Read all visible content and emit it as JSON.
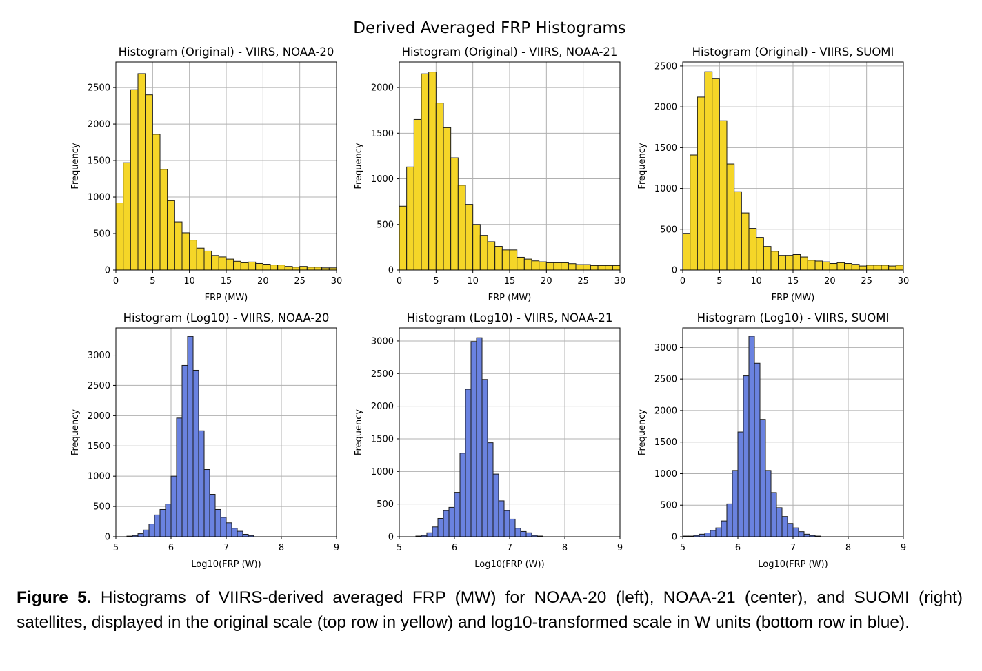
{
  "figure": {
    "suptitle": "Derived Averaged FRP Histograms",
    "caption_label": "Figure 5.",
    "caption_text": " Histograms of VIIRS-derived averaged FRP (MW) for NOAA-20 (left), NOAA-21 (center), and SUOMI (right) satellites, displayed in the original scale (top row in yellow) and log10-transformed scale in W units (bottom row in blue).",
    "colors": {
      "original_fill": "#f5d628",
      "log_fill": "#6a82e0",
      "edge": "#1a1a1a",
      "grid": "#b0b0b0"
    }
  },
  "chart_data": [
    {
      "type": "bar",
      "title": "Histogram (Original) - VIIRS, NOAA-20",
      "xlabel": "FRP (MW)",
      "ylabel": "Frequency",
      "xlim": [
        0,
        30
      ],
      "ylim": [
        0,
        2850
      ],
      "xticks": [
        0,
        5,
        10,
        15,
        20,
        25,
        30
      ],
      "yticks": [
        0,
        500,
        1000,
        1500,
        2000,
        2500
      ],
      "bin_start": 0,
      "bin_width": 1,
      "values": [
        920,
        1470,
        2470,
        2690,
        2400,
        1860,
        1380,
        950,
        660,
        510,
        410,
        300,
        260,
        200,
        180,
        150,
        120,
        100,
        110,
        90,
        80,
        70,
        70,
        50,
        40,
        50,
        40,
        40,
        30,
        30
      ],
      "color": "yellow",
      "grid": true
    },
    {
      "type": "bar",
      "title": "Histogram (Original) - VIIRS, NOAA-21",
      "xlabel": "FRP (MW)",
      "ylabel": "Frequency",
      "xlim": [
        0,
        30
      ],
      "ylim": [
        0,
        2280
      ],
      "xticks": [
        0,
        5,
        10,
        15,
        20,
        25,
        30
      ],
      "yticks": [
        0,
        500,
        1000,
        1500,
        2000
      ],
      "bin_start": 0,
      "bin_width": 1,
      "values": [
        700,
        1130,
        1650,
        2150,
        2170,
        1830,
        1560,
        1230,
        930,
        720,
        500,
        380,
        310,
        260,
        220,
        220,
        140,
        120,
        100,
        90,
        80,
        80,
        80,
        70,
        60,
        60,
        50,
        50,
        50,
        50
      ],
      "color": "yellow",
      "grid": true
    },
    {
      "type": "bar",
      "title": "Histogram (Original) - VIIRS, SUOMI",
      "xlabel": "FRP (MW)",
      "ylabel": "Frequency",
      "xlim": [
        0,
        30
      ],
      "ylim": [
        0,
        2550
      ],
      "xticks": [
        0,
        5,
        10,
        15,
        20,
        25,
        30
      ],
      "yticks": [
        0,
        500,
        1000,
        1500,
        2000,
        2500
      ],
      "bin_start": 0,
      "bin_width": 1,
      "values": [
        450,
        1410,
        2120,
        2430,
        2350,
        1830,
        1300,
        960,
        700,
        510,
        400,
        290,
        230,
        180,
        180,
        190,
        160,
        120,
        110,
        100,
        80,
        90,
        80,
        70,
        50,
        60,
        60,
        60,
        50,
        60
      ],
      "color": "yellow",
      "grid": true
    },
    {
      "type": "bar",
      "title": "Histogram (Log10) - VIIRS, NOAA-20",
      "xlabel": "Log10(FRP (W))",
      "ylabel": "Frequency",
      "xlim": [
        5,
        9
      ],
      "ylim": [
        0,
        3450
      ],
      "xticks": [
        5,
        6,
        7,
        8,
        9
      ],
      "yticks": [
        0,
        500,
        1000,
        1500,
        2000,
        2500,
        3000
      ],
      "bin_start": 5.2,
      "bin_width": 0.1,
      "values": [
        10,
        20,
        50,
        110,
        210,
        360,
        450,
        540,
        1000,
        1960,
        2830,
        3310,
        2750,
        1750,
        1110,
        700,
        450,
        320,
        230,
        140,
        90,
        40,
        20
      ],
      "color": "blue",
      "grid": true
    },
    {
      "type": "bar",
      "title": "Histogram (Log10) - VIIRS, NOAA-21",
      "xlabel": "Log10(FRP (W))",
      "ylabel": "Frequency",
      "xlim": [
        5,
        9
      ],
      "ylim": [
        0,
        3200
      ],
      "xticks": [
        5,
        6,
        7,
        8,
        9
      ],
      "yticks": [
        0,
        500,
        1000,
        1500,
        2000,
        2500,
        3000
      ],
      "bin_start": 5.3,
      "bin_width": 0.1,
      "values": [
        10,
        20,
        60,
        150,
        280,
        400,
        450,
        680,
        1280,
        2260,
        2990,
        3050,
        2410,
        1440,
        960,
        550,
        400,
        270,
        130,
        80,
        60,
        20,
        10
      ],
      "color": "blue",
      "grid": true
    },
    {
      "type": "bar",
      "title": "Histogram (Log10) - VIIRS, SUOMI",
      "xlabel": "Log10(FRP (W))",
      "ylabel": "Frequency",
      "xlim": [
        5,
        9
      ],
      "ylim": [
        0,
        3310
      ],
      "xticks": [
        5,
        6,
        7,
        8,
        9
      ],
      "yticks": [
        0,
        500,
        1000,
        1500,
        2000,
        2500,
        3000
      ],
      "bin_start": 5.0,
      "bin_width": 0.1,
      "values": [
        10,
        10,
        20,
        40,
        60,
        100,
        140,
        250,
        520,
        1050,
        1660,
        2550,
        3180,
        2750,
        1860,
        1050,
        700,
        460,
        320,
        210,
        140,
        80,
        40,
        20,
        10
      ],
      "color": "blue",
      "grid": true
    }
  ]
}
